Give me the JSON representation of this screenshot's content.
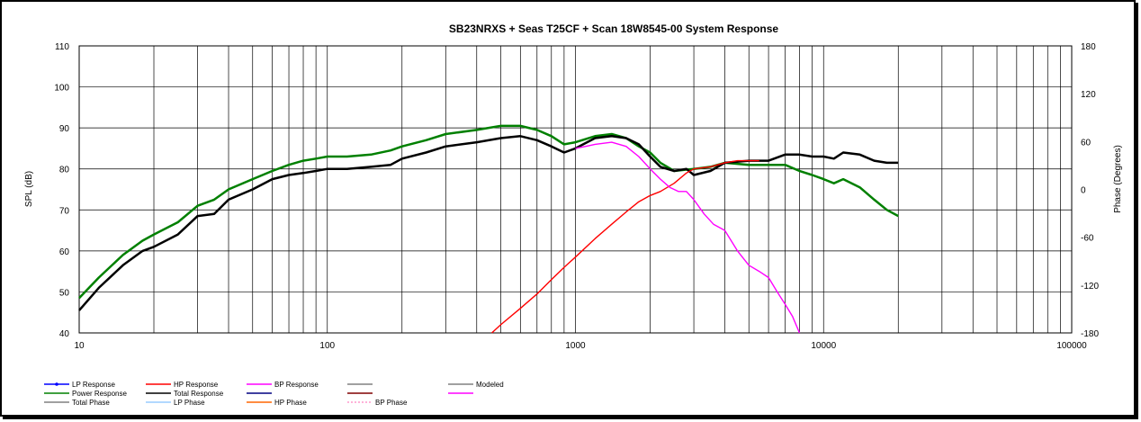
{
  "chart_data": {
    "type": "line",
    "title": "SB23NRXS + Seas T25CF + Scan 18W8545-00   System Response",
    "xlabel": "",
    "ylabel": "SPL (dB)",
    "y2label": "Phase (Degrees)",
    "x_scale": "log",
    "xlim": [
      10,
      100000
    ],
    "ylim": [
      40,
      110
    ],
    "y2lim": [
      -180,
      180
    ],
    "x_ticks": [
      "10",
      "100",
      "1000",
      "10000",
      "100000"
    ],
    "y_ticks": [
      "40",
      "50",
      "60",
      "70",
      "80",
      "90",
      "100",
      "110"
    ],
    "y2_ticks": [
      "-180",
      "-120",
      "-60",
      "0",
      "60",
      "120",
      "180"
    ],
    "grid": true,
    "legend_position": "bottom",
    "legend": [
      {
        "name": "LP Response",
        "color": "#0000ff",
        "marker": true
      },
      {
        "name": "HP Response",
        "color": "#ff0000"
      },
      {
        "name": "BP Response",
        "color": "#ff00ff"
      },
      {
        "name": "",
        "color": "#808080"
      },
      {
        "name": "Modeled",
        "color": "#808080"
      },
      {
        "name": "Power Response",
        "color": "#008000"
      },
      {
        "name": "Total Response",
        "color": "#000000"
      },
      {
        "name": "",
        "color": "#000080"
      },
      {
        "name": "",
        "color": "#800000"
      },
      {
        "name": "",
        "color": "#ff00ff"
      },
      {
        "name": "Total Phase",
        "color": "#808080"
      },
      {
        "name": "LP Phase",
        "color": "#99ccff"
      },
      {
        "name": "HP Phase",
        "color": "#ff6600"
      },
      {
        "name": "BP Phase",
        "color": "#ff99cc",
        "dash": true
      }
    ],
    "series": [
      {
        "name": "Power Response",
        "color": "#008000",
        "x": [
          10,
          12,
          15,
          18,
          20,
          25,
          30,
          35,
          40,
          50,
          60,
          70,
          80,
          90,
          100,
          120,
          150,
          180,
          200,
          250,
          300,
          400,
          500,
          600,
          700,
          800,
          900,
          1000,
          1200,
          1400,
          1600,
          1800,
          2000,
          2200,
          2500,
          3000,
          3500,
          4000,
          5000,
          6000,
          7000,
          8000,
          9000,
          10000,
          11000,
          12000,
          14000,
          16000,
          18000,
          20000
        ],
        "values": [
          48.5,
          53.5,
          59,
          62.5,
          64,
          67,
          71,
          72.5,
          75,
          77.5,
          79.5,
          81,
          82,
          82.5,
          83,
          83,
          83.5,
          84.5,
          85.5,
          87,
          88.5,
          89.5,
          90.5,
          90.5,
          89.5,
          88,
          86,
          86.5,
          88,
          88.5,
          87.5,
          85.5,
          84,
          81.5,
          79.5,
          80,
          80.5,
          81.5,
          81,
          81,
          81,
          79.5,
          78.5,
          77.5,
          76.5,
          77.5,
          75.5,
          72.5,
          70,
          68.5
        ]
      },
      {
        "name": "Total Response",
        "color": "#000000",
        "x": [
          10,
          12,
          15,
          18,
          20,
          25,
          30,
          35,
          40,
          50,
          60,
          70,
          80,
          90,
          100,
          120,
          150,
          180,
          200,
          250,
          300,
          400,
          500,
          600,
          700,
          800,
          900,
          1000,
          1200,
          1400,
          1600,
          1800,
          2000,
          2200,
          2500,
          2800,
          3000,
          3500,
          4000,
          5000,
          6000,
          7000,
          8000,
          9000,
          10000,
          11000,
          12000,
          14000,
          16000,
          18000,
          20000
        ],
        "values": [
          45.5,
          51,
          56.5,
          60,
          61,
          64,
          68.5,
          69,
          72.5,
          75,
          77.5,
          78.5,
          79,
          79.5,
          80,
          80,
          80.5,
          81,
          82.5,
          84,
          85.5,
          86.5,
          87.5,
          88,
          87,
          85.5,
          84,
          85,
          87.5,
          88,
          87.5,
          86,
          83,
          80.5,
          79.5,
          80,
          78.5,
          79.5,
          81.5,
          82,
          82,
          83.5,
          83.5,
          83,
          83,
          82.5,
          84,
          83.5,
          82,
          81.5,
          81.5
        ]
      },
      {
        "name": "HP Response",
        "color": "#ff0000",
        "x": [
          460,
          500,
          600,
          700,
          800,
          900,
          1000,
          1200,
          1400,
          1600,
          1800,
          2000,
          2200,
          2500,
          2800,
          3000,
          3500,
          4000,
          4500,
          5000,
          5500
        ],
        "values": [
          40,
          42,
          46,
          49.5,
          53,
          56,
          58.5,
          63,
          66.5,
          69.5,
          72,
          73.5,
          74.5,
          76.5,
          79,
          80,
          80.5,
          81.5,
          82,
          82,
          82
        ]
      },
      {
        "name": "BP Response",
        "color": "#ff00ff",
        "x": [
          1000,
          1100,
          1200,
          1400,
          1600,
          1800,
          2000,
          2200,
          2400,
          2600,
          2800,
          3000,
          3300,
          3600,
          4000,
          4500,
          5000,
          5500,
          6000,
          6500,
          7000,
          7500,
          8000
        ],
        "values": [
          85,
          85.5,
          86,
          86.5,
          85.5,
          83,
          80,
          77.5,
          75.5,
          74.5,
          74.5,
          72.5,
          69,
          66.5,
          65,
          60,
          56.5,
          55,
          53.5,
          50,
          47,
          44,
          40
        ]
      }
    ]
  }
}
